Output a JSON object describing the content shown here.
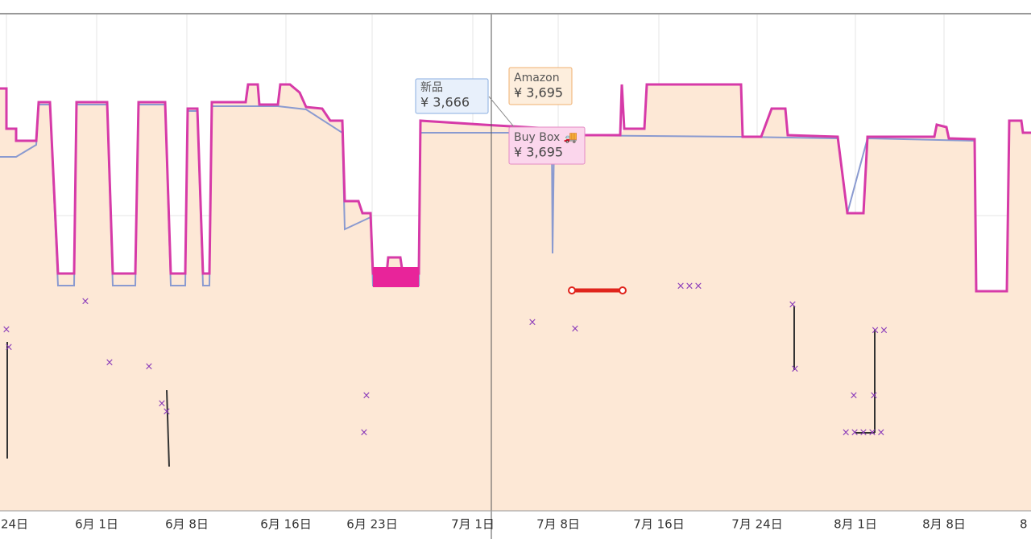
{
  "x_axis_labels": [
    "24日",
    "6月 1日",
    "6月 8日",
    "6月 16日",
    "6月 23日",
    "7月 1日",
    "7月 8日",
    "7月 16日",
    "7月 24日",
    "8月 1日",
    "8月 8日",
    "8"
  ],
  "tooltips": [
    {
      "label": "新品",
      "price": "¥ 3,666"
    },
    {
      "label": "Amazon",
      "price": "¥ 3,695"
    },
    {
      "label": "Buy Box 🚚",
      "price": "¥ 3,695"
    }
  ]
}
